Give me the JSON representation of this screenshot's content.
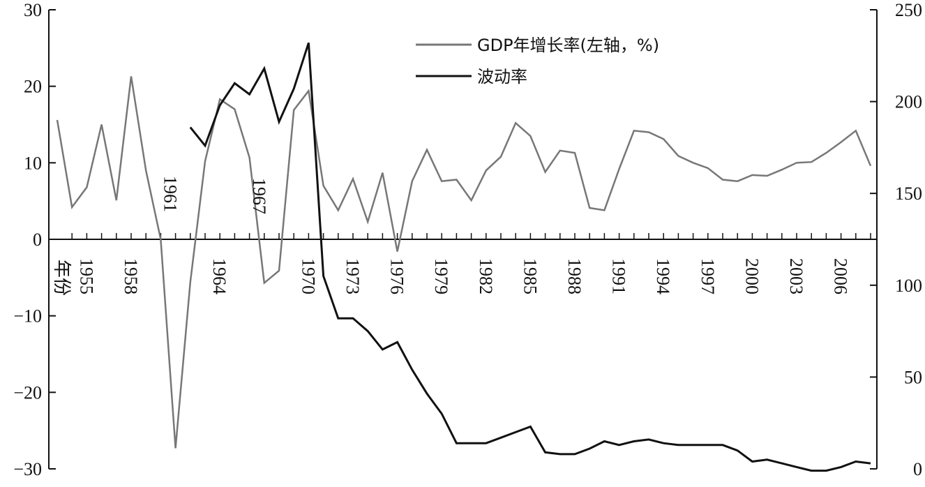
{
  "chart_data": {
    "type": "line",
    "title": "",
    "xlabel": "年份",
    "x_tick_labels": [
      "1955",
      "1958",
      "1964",
      "1970",
      "1973",
      "1976",
      "1979",
      "1982",
      "1985",
      "1988",
      "1991",
      "1994",
      "1997",
      "2000",
      "2003",
      "2006"
    ],
    "x_range": [
      1953,
      2008
    ],
    "y_left": {
      "label": "",
      "range": [
        -30,
        30
      ],
      "ticks": [
        "30",
        "20",
        "10",
        "0",
        "−10",
        "−20",
        "−30"
      ]
    },
    "y_right": {
      "label": "",
      "range": [
        0,
        250
      ],
      "ticks": [
        "250",
        "200",
        "150",
        "100",
        "50",
        "0"
      ]
    },
    "annotations": [
      {
        "text": "1961",
        "x": 1961
      },
      {
        "text": "1967",
        "x": 1967
      }
    ],
    "series": [
      {
        "name": "GDP年增长率(左轴，%)",
        "axis": "left",
        "color": "#777777",
        "x": [
          1953,
          1954,
          1955,
          1956,
          1957,
          1958,
          1959,
          1960,
          1961,
          1962,
          1963,
          1964,
          1965,
          1966,
          1967,
          1968,
          1969,
          1970,
          1971,
          1972,
          1973,
          1974,
          1975,
          1976,
          1977,
          1978,
          1979,
          1980,
          1981,
          1982,
          1983,
          1984,
          1985,
          1986,
          1987,
          1988,
          1989,
          1990,
          1991,
          1992,
          1993,
          1994,
          1995,
          1996,
          1997,
          1998,
          1999,
          2000,
          2001,
          2002,
          2003,
          2004,
          2005,
          2006,
          2007,
          2008
        ],
        "values": [
          15.6,
          4.2,
          6.8,
          15.0,
          5.1,
          21.3,
          9.0,
          0.0,
          -27.3,
          -5.6,
          10.2,
          18.3,
          17.0,
          10.7,
          -5.7,
          -4.1,
          16.9,
          19.4,
          7.0,
          3.8,
          7.9,
          2.3,
          8.7,
          -1.6,
          7.6,
          11.7,
          7.6,
          7.8,
          5.1,
          9.0,
          10.8,
          15.2,
          13.5,
          8.8,
          11.6,
          11.3,
          4.1,
          3.8,
          9.2,
          14.2,
          14.0,
          13.1,
          10.9,
          10.0,
          9.3,
          7.8,
          7.6,
          8.4,
          8.3,
          9.1,
          10.0,
          10.1,
          11.3,
          12.7,
          14.2,
          9.6
        ]
      },
      {
        "name": "波动率",
        "axis": "right",
        "color": "#111111",
        "x": [
          1962,
          1963,
          1964,
          1965,
          1966,
          1967,
          1968,
          1969,
          1970,
          1971,
          1972,
          1973,
          1974,
          1975,
          1976,
          1977,
          1978,
          1979,
          1980,
          1981,
          1982,
          1983,
          1984,
          1985,
          1986,
          1987,
          1988,
          1989,
          1990,
          1991,
          1992,
          1993,
          1994,
          1995,
          1996,
          1997,
          1998,
          1999,
          2000,
          2001,
          2002,
          2003,
          2004,
          2005,
          2006,
          2007,
          2008
        ],
        "values": [
          186,
          176,
          198,
          210,
          204,
          218,
          189,
          207,
          232,
          105,
          82,
          82,
          75,
          65,
          69,
          54,
          41,
          30,
          14,
          14,
          14,
          17,
          20,
          23,
          9,
          8,
          8,
          11,
          15,
          13,
          15,
          16,
          14,
          13,
          13,
          13,
          13,
          10,
          4,
          5,
          3,
          1,
          -1,
          -1,
          1,
          4,
          3
        ]
      }
    ]
  }
}
